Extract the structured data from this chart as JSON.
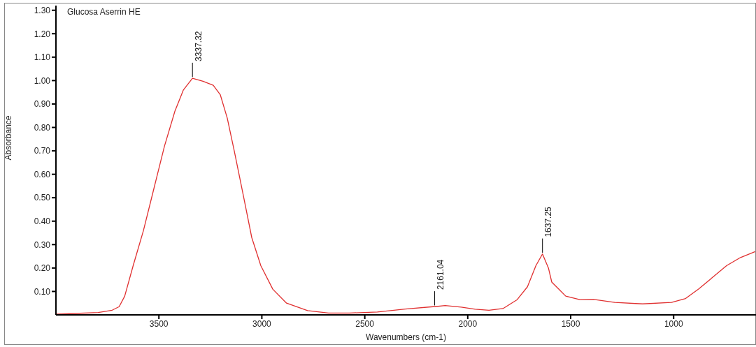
{
  "chart_data": {
    "type": "line",
    "title": "Glucosa Aserrin HE",
    "xlabel": "Wavenumbers (cm-1)",
    "ylabel": "Absorbance",
    "x": [
      3998,
      3795,
      3727,
      3693,
      3666,
      3625,
      3575,
      3524,
      3473,
      3422,
      3381,
      3337,
      3286,
      3236,
      3202,
      3168,
      3134,
      3090,
      3049,
      3005,
      2947,
      2880,
      2778,
      2676,
      2575,
      2439,
      2303,
      2168,
      2161,
      2110,
      2032,
      1964,
      1897,
      1829,
      1760,
      1710,
      1669,
      1637,
      1608,
      1592,
      1558,
      1524,
      1456,
      1388,
      1286,
      1151,
      1010,
      942,
      879,
      811,
      743,
      675,
      604
    ],
    "series": [
      {
        "color": "#e03030",
        "values": [
          0.003,
          0.01,
          0.02,
          0.035,
          0.08,
          0.21,
          0.36,
          0.54,
          0.72,
          0.87,
          0.96,
          1.01,
          0.997,
          0.98,
          0.94,
          0.84,
          0.7,
          0.51,
          0.33,
          0.21,
          0.11,
          0.05,
          0.018,
          0.008,
          0.008,
          0.012,
          0.025,
          0.035,
          0.035,
          0.04,
          0.033,
          0.024,
          0.02,
          0.027,
          0.065,
          0.12,
          0.21,
          0.26,
          0.2,
          0.14,
          0.11,
          0.08,
          0.065,
          0.066,
          0.053,
          0.047,
          0.053,
          0.07,
          0.11,
          0.16,
          0.21,
          0.245,
          0.27
        ]
      }
    ],
    "xlim": [
      4000,
      600
    ],
    "xticks": [
      3500,
      3000,
      2500,
      2000,
      1500,
      1000
    ],
    "ylim": [
      0,
      1.32
    ],
    "yticks": [
      {
        "value": 0.1,
        "label": "0.10"
      },
      {
        "value": 0.2,
        "label": "0.20"
      },
      {
        "value": 0.3,
        "label": "0.30"
      },
      {
        "value": 0.4,
        "label": "0.40"
      },
      {
        "value": 0.5,
        "label": "0.50"
      },
      {
        "value": 0.6,
        "label": "0.60"
      },
      {
        "value": 0.7,
        "label": "0.70"
      },
      {
        "value": 0.8,
        "label": "0.80"
      },
      {
        "value": 0.9,
        "label": "0.90"
      },
      {
        "value": 1.0,
        "label": "1.00"
      },
      {
        "value": 1.1,
        "label": "1.10"
      },
      {
        "value": 1.2,
        "label": "1.20"
      },
      {
        "value": 1.3,
        "label": "1.30"
      }
    ],
    "annotations": [
      {
        "text": "3337.32",
        "x": 3337,
        "y": 1.01
      },
      {
        "text": "2161.04",
        "x": 2161,
        "y": 0.035
      },
      {
        "text": "1637.25",
        "x": 1637,
        "y": 0.26
      }
    ],
    "grid": false,
    "legend": false,
    "marker": "none",
    "line_style": "solid"
  }
}
